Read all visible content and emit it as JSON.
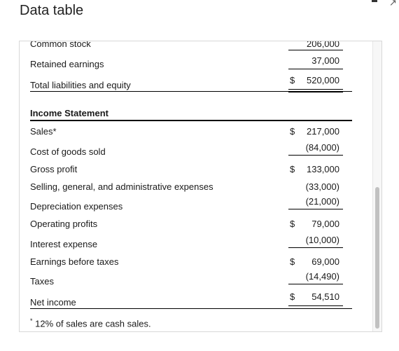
{
  "window": {
    "title": "Data table"
  },
  "balance_sheet_tail": [
    {
      "label": "Common stock",
      "dollar": "",
      "amount": "206,000"
    },
    {
      "label": "Retained earnings",
      "dollar": "",
      "amount": "37,000"
    },
    {
      "label": "Total liabilities and equity",
      "dollar": "$",
      "amount": "520,000"
    }
  ],
  "income_statement": {
    "heading": "Income Statement",
    "rows": [
      {
        "label": "Sales*",
        "dollar": "$",
        "amount": "217,000"
      },
      {
        "label": "Cost of goods sold",
        "dollar": "",
        "amount": "(84,000)"
      },
      {
        "label": "Gross profit",
        "dollar": "$",
        "amount": "133,000"
      },
      {
        "label": "Selling, general, and administrative expenses",
        "dollar": "",
        "amount": "(33,000)"
      },
      {
        "label": "Depreciation expenses",
        "dollar": "",
        "amount": "(21,000)"
      },
      {
        "label": "Operating profits",
        "dollar": "$",
        "amount": "79,000"
      },
      {
        "label": "Interest expense",
        "dollar": "",
        "amount": "(10,000)"
      },
      {
        "label": "Earnings before taxes",
        "dollar": "$",
        "amount": "69,000"
      },
      {
        "label": "Taxes",
        "dollar": "",
        "amount": "(14,490)"
      },
      {
        "label": "Net income",
        "dollar": "$",
        "amount": "54,510"
      }
    ]
  },
  "footnote": {
    "marker": "*",
    "text": " 12% of sales are cash sales."
  }
}
